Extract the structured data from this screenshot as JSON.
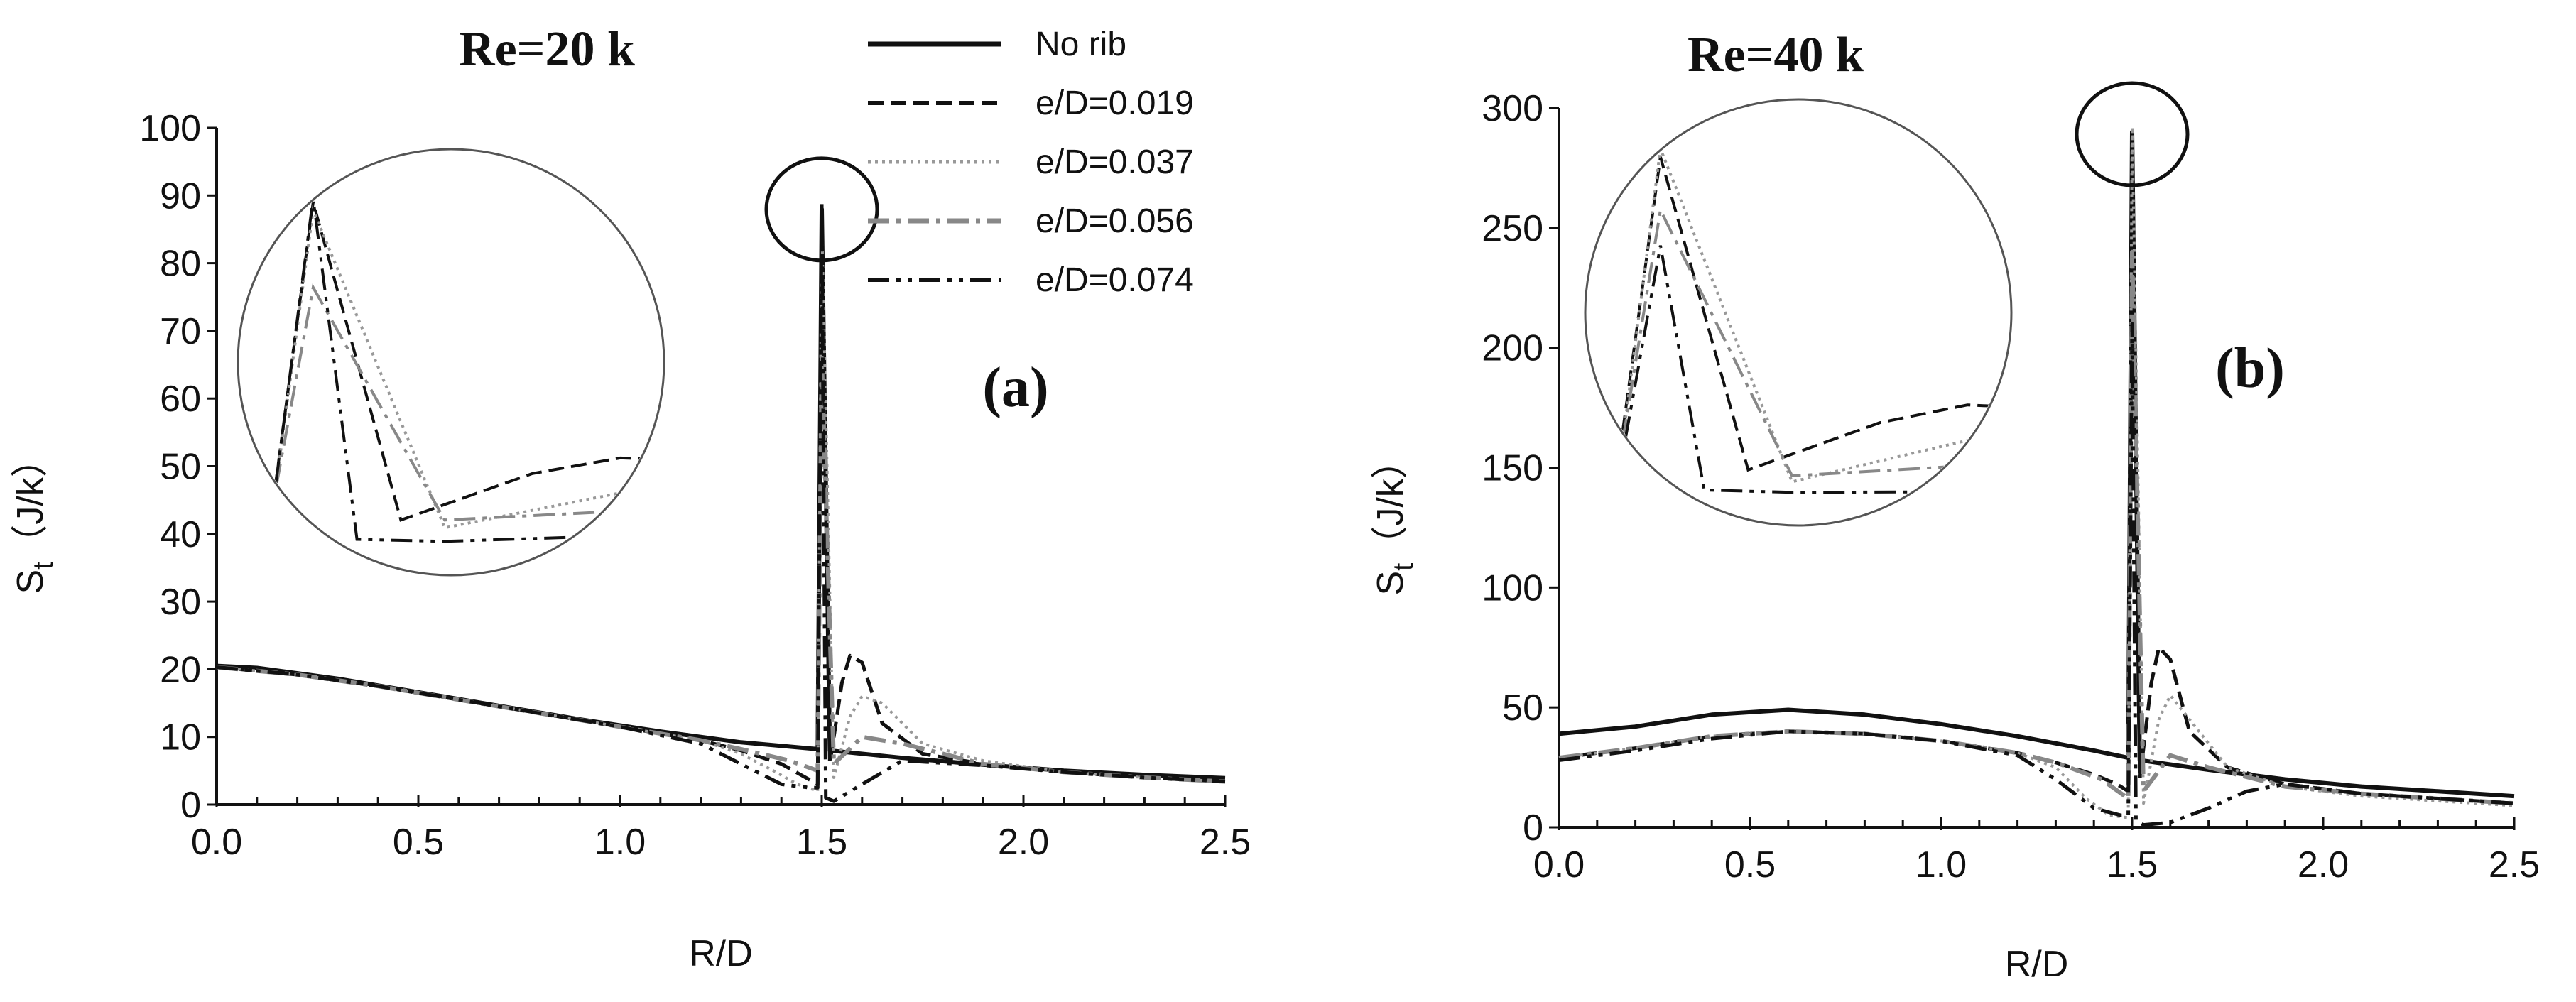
{
  "legend": {
    "entries": [
      {
        "label": "No rib",
        "color": "#111111",
        "dash": "solid"
      },
      {
        "label": "e/D=0.019",
        "color": "#111111",
        "dash": "dashed"
      },
      {
        "label": "e/D=0.037",
        "color": "#999999",
        "dash": "dotted"
      },
      {
        "label": "e/D=0.056",
        "color": "#888888",
        "dash": "dashdot"
      },
      {
        "label": "e/D=0.074",
        "color": "#111111",
        "dashdotdot": true,
        "dash": "dashdotdot"
      }
    ]
  },
  "chart_data": [
    {
      "type": "line",
      "title": "Re=20 k",
      "tag": "(a)",
      "xlabel": "R/D",
      "ylabel": "S",
      "ylabel_sub": "t",
      "ylabel_unit": "（J/k）",
      "xlim": [
        0,
        2.5
      ],
      "ylim": [
        0,
        100
      ],
      "xticks": [
        "0.0",
        "0.5",
        "1.0",
        "1.5",
        "2.0",
        "2.5"
      ],
      "xtick_values": [
        0,
        0.5,
        1.0,
        1.5,
        2.0,
        2.5
      ],
      "yticks": [
        "0",
        "10",
        "20",
        "30",
        "40",
        "50",
        "60",
        "70",
        "80",
        "90",
        "100"
      ],
      "ytick_values": [
        0,
        10,
        20,
        30,
        40,
        50,
        60,
        70,
        80,
        90,
        100
      ],
      "series": [
        {
          "name": "No rib",
          "x": [
            0,
            0.1,
            0.3,
            0.5,
            0.7,
            0.9,
            1.1,
            1.3,
            1.49,
            1.5,
            1.52,
            1.7,
            1.9,
            2.1,
            2.3,
            2.5
          ],
          "y": [
            20.5,
            20.2,
            18.6,
            16.6,
            14.6,
            12.6,
            10.8,
            9.2,
            8.2,
            88,
            8.0,
            6.9,
            5.9,
            5.0,
            4.4,
            3.9
          ]
        },
        {
          "name": "e/D=0.019",
          "x": [
            0,
            0.2,
            0.4,
            0.6,
            0.8,
            1.0,
            1.2,
            1.3,
            1.4,
            1.46,
            1.49,
            1.5,
            1.52,
            1.55,
            1.57,
            1.6,
            1.65,
            1.75,
            1.9,
            2.1,
            2.3,
            2.5
          ],
          "y": [
            20.3,
            19.2,
            17.5,
            15.5,
            13.5,
            11.5,
            9.5,
            8.0,
            6.0,
            4.0,
            3.0,
            88,
            6.0,
            18,
            22,
            21,
            12,
            7.5,
            6.0,
            4.8,
            4.0,
            3.4
          ]
        },
        {
          "name": "e/D=0.037",
          "x": [
            0,
            0.2,
            0.4,
            0.6,
            0.8,
            1.0,
            1.2,
            1.3,
            1.38,
            1.44,
            1.49,
            1.5,
            1.53,
            1.57,
            1.6,
            1.65,
            1.75,
            1.9,
            2.1,
            2.3,
            2.5
          ],
          "y": [
            20.3,
            19.2,
            17.5,
            15.5,
            13.5,
            11.5,
            9.5,
            7.5,
            5.0,
            3.0,
            2.0,
            86,
            4.0,
            13,
            16,
            15,
            9.0,
            6.5,
            4.8,
            4.0,
            3.4
          ]
        },
        {
          "name": "e/D=0.056",
          "x": [
            0,
            0.2,
            0.4,
            0.6,
            0.8,
            1.0,
            1.2,
            1.3,
            1.42,
            1.49,
            1.5,
            1.53,
            1.6,
            1.7,
            1.9,
            2.1,
            2.3,
            2.5
          ],
          "y": [
            20.3,
            19.2,
            17.5,
            15.5,
            13.5,
            11.5,
            9.5,
            8.2,
            6.5,
            5.0,
            66,
            6.0,
            10,
            9.0,
            6.0,
            4.8,
            4.0,
            3.4
          ]
        },
        {
          "name": "e/D=0.074",
          "x": [
            0,
            0.2,
            0.4,
            0.6,
            0.8,
            1.0,
            1.2,
            1.3,
            1.4,
            1.47,
            1.49,
            1.5,
            1.51,
            1.53,
            1.6,
            1.7,
            1.9,
            2.1,
            2.3,
            2.5
          ],
          "y": [
            20.3,
            19.2,
            17.5,
            15.5,
            13.5,
            11.5,
            9.0,
            6.0,
            3.0,
            2.5,
            2.5,
            89,
            1.0,
            0.5,
            3.0,
            6.5,
            5.8,
            4.8,
            4.0,
            3.4
          ]
        }
      ]
    },
    {
      "type": "line",
      "title": "Re=40 k",
      "tag": "(b)",
      "xlabel": "R/D",
      "ylabel": "S",
      "ylabel_sub": "t",
      "ylabel_unit": "（J/k）",
      "xlim": [
        0,
        2.5
      ],
      "ylim": [
        0,
        300
      ],
      "xticks": [
        "0.0",
        "0.5",
        "1.0",
        "1.5",
        "2.0",
        "2.5"
      ],
      "xtick_values": [
        0,
        0.5,
        1.0,
        1.5,
        2.0,
        2.5
      ],
      "yticks": [
        "0",
        "50",
        "100",
        "150",
        "200",
        "250",
        "300"
      ],
      "ytick_values": [
        0,
        50,
        100,
        150,
        200,
        250,
        300
      ],
      "series": [
        {
          "name": "No rib",
          "x": [
            0,
            0.2,
            0.4,
            0.6,
            0.8,
            1.0,
            1.2,
            1.4,
            1.49,
            1.5,
            1.52,
            1.7,
            1.9,
            2.1,
            2.3,
            2.5
          ],
          "y": [
            39,
            42,
            47,
            49,
            47,
            43,
            38,
            32,
            29,
            290,
            28,
            24,
            20,
            17,
            15,
            13
          ]
        },
        {
          "name": "e/D=0.019",
          "x": [
            0,
            0.2,
            0.4,
            0.6,
            0.8,
            1.0,
            1.2,
            1.3,
            1.4,
            1.46,
            1.49,
            1.5,
            1.52,
            1.55,
            1.57,
            1.6,
            1.65,
            1.75,
            1.9,
            2.1,
            2.3,
            2.5
          ],
          "y": [
            29,
            33,
            38,
            40,
            39,
            36,
            31,
            27,
            22,
            18,
            15,
            285,
            20,
            60,
            75,
            70,
            40,
            25,
            18,
            14,
            12,
            10
          ]
        },
        {
          "name": "e/D=0.037",
          "x": [
            0,
            0.2,
            0.4,
            0.6,
            0.8,
            1.0,
            1.2,
            1.3,
            1.38,
            1.44,
            1.49,
            1.5,
            1.53,
            1.57,
            1.6,
            1.65,
            1.75,
            1.9,
            2.1,
            2.3,
            2.5
          ],
          "y": [
            29,
            33,
            38,
            40,
            39,
            36,
            31,
            25,
            12,
            5,
            4,
            292,
            10,
            45,
            55,
            45,
            25,
            17,
            13,
            11,
            9
          ]
        },
        {
          "name": "e/D=0.056",
          "x": [
            0,
            0.2,
            0.4,
            0.6,
            0.8,
            1.0,
            1.2,
            1.3,
            1.42,
            1.49,
            1.5,
            1.53,
            1.6,
            1.7,
            1.9,
            2.1,
            2.3,
            2.5
          ],
          "y": [
            29,
            33,
            38,
            40,
            39,
            36,
            31,
            27,
            20,
            12,
            240,
            15,
            30,
            25,
            17,
            14,
            12,
            10
          ]
        },
        {
          "name": "e/D=0.074",
          "x": [
            0,
            0.2,
            0.4,
            0.6,
            0.8,
            1.0,
            1.2,
            1.3,
            1.4,
            1.47,
            1.49,
            1.5,
            1.51,
            1.53,
            1.6,
            1.7,
            1.8,
            1.9,
            2.1,
            2.3,
            2.5
          ],
          "y": [
            28,
            32,
            37,
            40,
            39,
            36,
            30,
            20,
            8,
            5,
            5,
            210,
            3,
            1,
            2,
            8,
            15,
            18,
            14,
            12,
            10
          ]
        }
      ]
    }
  ]
}
